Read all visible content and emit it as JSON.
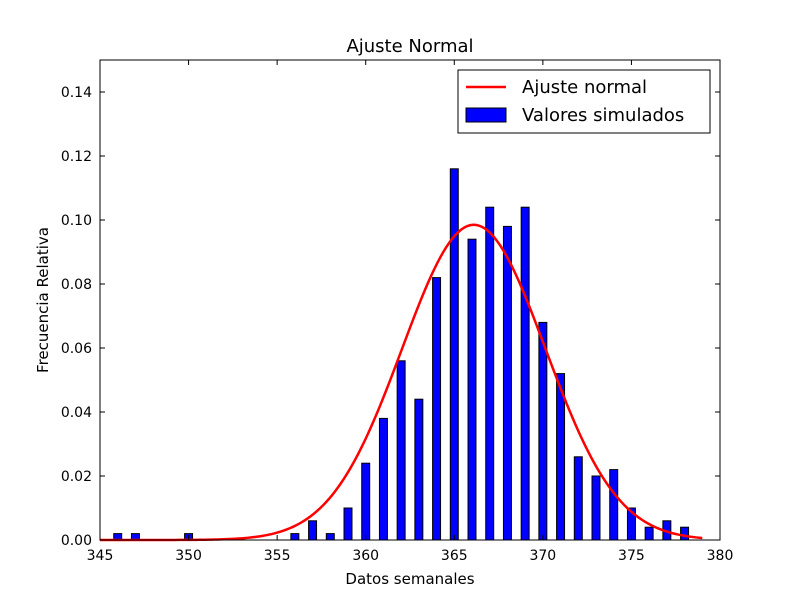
{
  "chart_data": {
    "type": "bar",
    "title": "Ajuste Normal",
    "xlabel": "Datos semanales",
    "ylabel": "Frecuencia Relativa",
    "xlim": [
      345,
      380
    ],
    "ylim": [
      0,
      0.15
    ],
    "xticks": [
      345,
      350,
      355,
      360,
      365,
      370,
      375,
      380
    ],
    "xtick_labels": [
      "345",
      "350",
      "355",
      "360",
      "365",
      "370",
      "375",
      "380"
    ],
    "yticks": [
      0.0,
      0.02,
      0.04,
      0.06,
      0.08,
      0.1,
      0.12,
      0.14
    ],
    "ytick_labels": [
      "0.00",
      "0.02",
      "0.04",
      "0.06",
      "0.08",
      "0.10",
      "0.12",
      "0.14"
    ],
    "grid": false,
    "legend_position": "top-right",
    "series": [
      {
        "name": "Valores simulados",
        "kind": "bar",
        "color": "#0000ff",
        "x": [
          346,
          347,
          350,
          356,
          357,
          358,
          359,
          360,
          361,
          362,
          363,
          364,
          365,
          366,
          367,
          368,
          369,
          370,
          371,
          372,
          373,
          374,
          375,
          376,
          377,
          378
        ],
        "values": [
          0.002,
          0.002,
          0.002,
          0.002,
          0.006,
          0.002,
          0.01,
          0.024,
          0.038,
          0.056,
          0.044,
          0.082,
          0.116,
          0.094,
          0.104,
          0.098,
          0.104,
          0.068,
          0.052,
          0.026,
          0.02,
          0.022,
          0.01,
          0.004,
          0.006,
          0.004
        ]
      },
      {
        "name": "Ajuste normal",
        "kind": "line",
        "color": "#ff0000",
        "mean": 366.1,
        "std": 4.05,
        "x_range": [
          345,
          379
        ]
      }
    ]
  }
}
